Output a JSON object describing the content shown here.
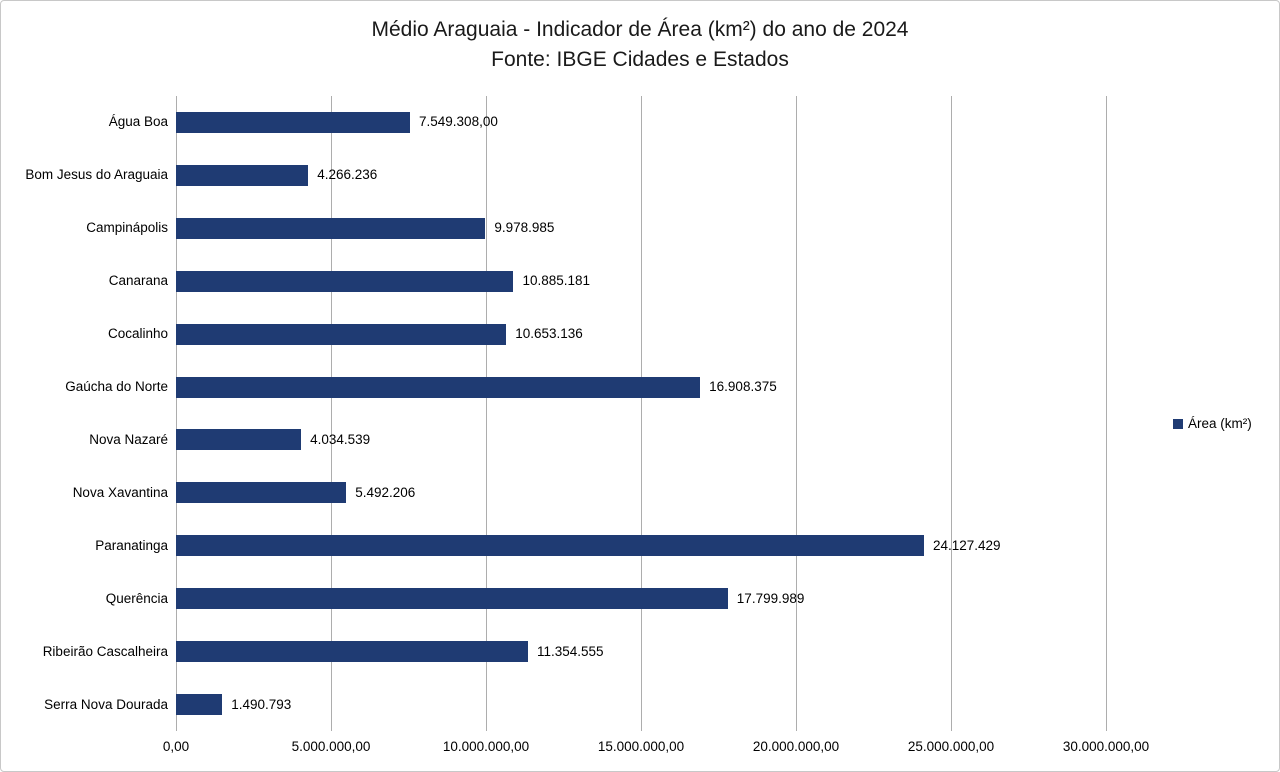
{
  "chart_data": {
    "type": "bar",
    "orientation": "horizontal",
    "title": "Médio Araguaia - Indicador de Área (km²) do ano de 2024",
    "subtitle": "Fonte: IBGE Cidades e Estados",
    "categories": [
      "Água Boa",
      "Bom Jesus do Araguaia",
      "Campinápolis",
      "Canarana",
      "Cocalinho",
      "Gaúcha do Norte",
      "Nova Nazaré",
      "Nova Xavantina",
      "Paranatinga",
      "Querência",
      "Ribeirão Cascalheira",
      "Serra Nova Dourada"
    ],
    "series": [
      {
        "name": "Área (km²)",
        "values": [
          7549308,
          4266236,
          9978985,
          10885181,
          10653136,
          16908375,
          4034539,
          5492206,
          24127429,
          17799989,
          11354555,
          1490793
        ],
        "value_labels": [
          "7.549.308,00",
          "4.266.236",
          "9.978.985",
          "10.885.181",
          "10.653.136",
          "16.908.375",
          "4.034.539",
          "5.492.206",
          "24.127.429",
          "17.799.989",
          "11.354.555",
          "1.490.793"
        ]
      }
    ],
    "x_axis": {
      "min": 0,
      "max": 30000000,
      "ticks": [
        {
          "value": 0,
          "label": "0,00"
        },
        {
          "value": 5000000,
          "label": "5.000.000,00"
        },
        {
          "value": 10000000,
          "label": "10.000.000,00"
        },
        {
          "value": 15000000,
          "label": "15.000.000,00"
        },
        {
          "value": 20000000,
          "label": "20.000.000,00"
        },
        {
          "value": 25000000,
          "label": "25.000.000,00"
        },
        {
          "value": 30000000,
          "label": "30.000.000,00"
        }
      ]
    },
    "grid": true,
    "legend": {
      "position": "right",
      "entries": [
        {
          "label": "Área (km²)",
          "color": "#1F3B73"
        }
      ]
    },
    "colors": {
      "bar": "#1F3B73",
      "gridline": "#ADADAD",
      "text": "#000000",
      "title_text": "#1A1A1A",
      "background": "#FFFFFF",
      "border": "#C8C8C8"
    }
  }
}
